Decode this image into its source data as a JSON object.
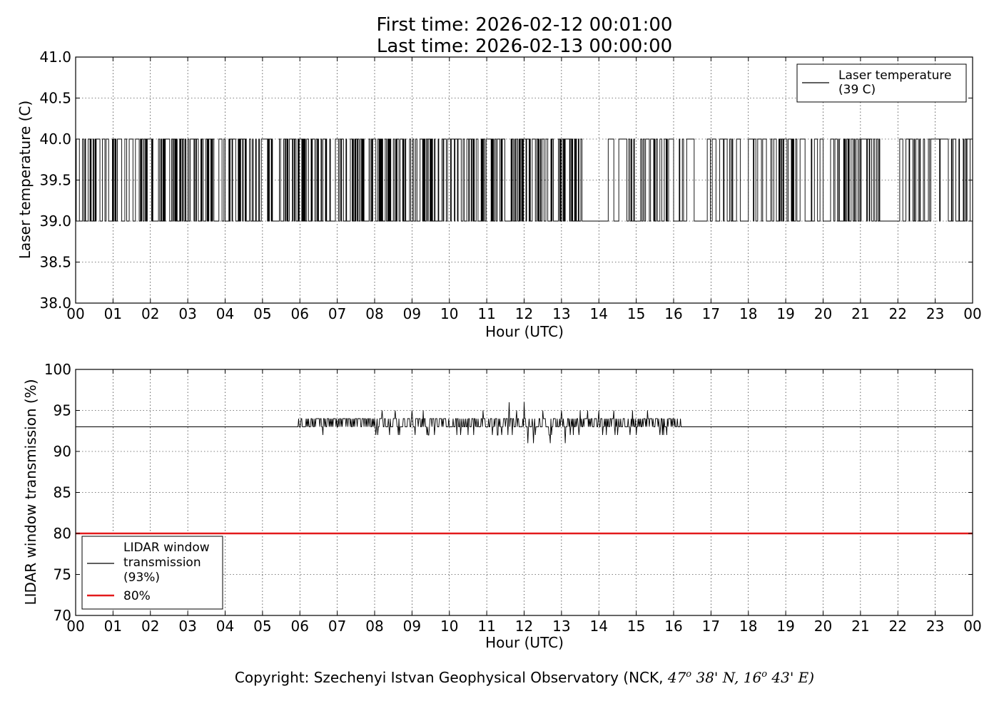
{
  "header": {
    "first_time": "First time: 2026-02-12 00:01:00",
    "last_time": "Last time: 2026-02-13 00:00:00"
  },
  "footer": {
    "copyright_prefix": "Copyright: Szechenyi Istvan Geophysical Observatory (NCK, ",
    "lat_deg": "47",
    "lat_min": "38' N, ",
    "lon_deg": "16",
    "lon_min": "43' E)",
    "degree_symbol": "o"
  },
  "chart_data": [
    {
      "type": "line",
      "title": "",
      "xlabel": "Hour (UTC)",
      "ylabel": "Laser temperature (C)",
      "xlim": [
        0,
        24
      ],
      "ylim": [
        38.0,
        41.0
      ],
      "x_ticks": [
        "00",
        "01",
        "02",
        "03",
        "04",
        "05",
        "06",
        "07",
        "08",
        "09",
        "10",
        "11",
        "12",
        "13",
        "14",
        "15",
        "16",
        "17",
        "18",
        "19",
        "20",
        "21",
        "22",
        "23",
        "00"
      ],
      "y_ticks": [
        "38.0",
        "38.5",
        "39.0",
        "39.5",
        "40.0",
        "40.5",
        "41.0"
      ],
      "grid": true,
      "legend_position": "top-right",
      "series": [
        {
          "name": "Laser temperature\n(39 C)",
          "color": "#000000",
          "values_low": 39.0,
          "values_high": 40.0,
          "note": "",
          "toggle_density": [
            [
              0.0,
              0.55,
              0.9
            ],
            [
              0.55,
              1.6,
              0.7
            ],
            [
              1.6,
              3.2,
              0.95
            ],
            [
              3.2,
              4.5,
              0.9
            ],
            [
              4.5,
              6.2,
              0.9
            ],
            [
              6.2,
              7.0,
              0.7
            ],
            [
              7.0,
              9.5,
              0.95
            ],
            [
              9.5,
              12.5,
              0.97
            ],
            [
              12.5,
              13.55,
              0.85
            ],
            [
              13.55,
              14.2,
              0.05
            ],
            [
              14.2,
              14.8,
              0.2
            ],
            [
              14.8,
              15.9,
              0.9
            ],
            [
              15.9,
              16.6,
              0.6
            ],
            [
              16.6,
              18.0,
              0.4
            ],
            [
              18.0,
              19.4,
              0.7
            ],
            [
              19.4,
              20.0,
              0.3
            ],
            [
              20.0,
              20.2,
              0.05
            ],
            [
              20.2,
              21.6,
              0.7
            ],
            [
              21.6,
              22.0,
              0.1
            ],
            [
              22.0,
              22.9,
              0.5
            ],
            [
              22.9,
              24.0,
              0.6
            ]
          ]
        }
      ]
    },
    {
      "type": "line",
      "title": "",
      "xlabel": "Hour (UTC)",
      "ylabel": "LIDAR window transmission (%)",
      "xlim": [
        0,
        24
      ],
      "ylim": [
        70,
        100
      ],
      "x_ticks": [
        "00",
        "01",
        "02",
        "03",
        "04",
        "05",
        "06",
        "07",
        "08",
        "09",
        "10",
        "11",
        "12",
        "13",
        "14",
        "15",
        "16",
        "17",
        "18",
        "19",
        "20",
        "21",
        "22",
        "23",
        "00"
      ],
      "y_ticks": [
        "70",
        "75",
        "80",
        "85",
        "90",
        "95",
        "100"
      ],
      "grid": true,
      "legend_position": "bottom-left",
      "series": [
        {
          "name": "LIDAR window\ntransmission\n(93%)",
          "color": "#000000",
          "baseline": 93,
          "noise_start": 5.95,
          "noise_end": 16.3,
          "noise_peaks": [
            [
              5.95,
              92
            ],
            [
              6.05,
              94
            ],
            [
              6.4,
              94
            ],
            [
              6.5,
              94
            ],
            [
              6.75,
              94
            ],
            [
              7.3,
              94
            ],
            [
              8.2,
              95
            ],
            [
              8.4,
              92
            ],
            [
              8.55,
              95
            ],
            [
              9.0,
              95
            ],
            [
              9.3,
              95
            ],
            [
              9.4,
              92
            ],
            [
              9.6,
              92
            ],
            [
              10.3,
              92
            ],
            [
              10.5,
              92
            ],
            [
              10.65,
              92
            ],
            [
              10.9,
              95
            ],
            [
              11.3,
              92
            ],
            [
              11.6,
              96
            ],
            [
              11.8,
              95
            ],
            [
              12.0,
              96
            ],
            [
              12.1,
              91
            ],
            [
              12.25,
              91
            ],
            [
              12.5,
              95
            ],
            [
              12.7,
              91
            ],
            [
              13.0,
              95
            ],
            [
              13.1,
              91
            ],
            [
              13.5,
              95
            ],
            [
              13.7,
              95
            ],
            [
              14.0,
              95
            ],
            [
              14.2,
              92
            ],
            [
              14.4,
              95
            ],
            [
              14.9,
              95
            ],
            [
              15.0,
              92
            ],
            [
              15.3,
              95
            ],
            [
              15.7,
              92
            ],
            [
              15.9,
              94
            ],
            [
              16.3,
              94
            ]
          ]
        },
        {
          "name": "80%",
          "color": "#e31a1c",
          "constant": 80
        }
      ]
    }
  ]
}
